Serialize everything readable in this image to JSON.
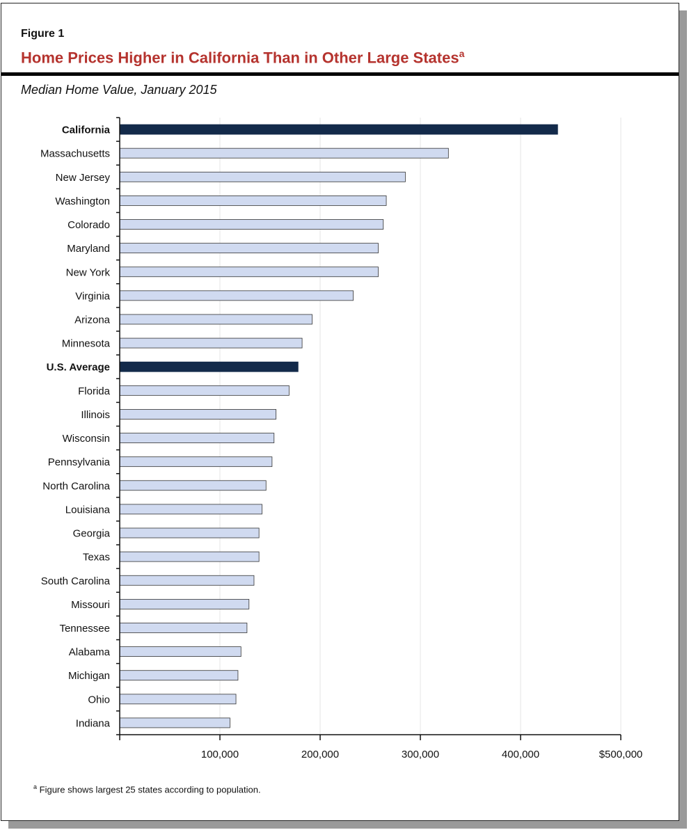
{
  "figure_label": "Figure 1",
  "title": "Home Prices Higher in California Than in Other Large States",
  "title_note_marker": "a",
  "subtitle": "Median Home Value, January 2015",
  "footnote": {
    "marker": "a",
    "text": "Figure shows largest 25 states according to population."
  },
  "colors": {
    "highlight": "#132a4a",
    "default": "#d0daf0",
    "title": "#b5332e"
  },
  "chart_data": {
    "type": "bar",
    "orientation": "horizontal",
    "categories": [
      "California",
      "Massachusetts",
      "New Jersey",
      "Washington",
      "Colorado",
      "Maryland",
      "New York",
      "Virginia",
      "Arizona",
      "Minnesota",
      "U.S. Average",
      "Florida",
      "Illinois",
      "Wisconsin",
      "Pennsylvania",
      "North Carolina",
      "Louisiana",
      "Georgia",
      "Texas",
      "South Carolina",
      "Missouri",
      "Tennessee",
      "Alabama",
      "Michigan",
      "Ohio",
      "Indiana"
    ],
    "values": [
      437000,
      328000,
      285000,
      266000,
      263000,
      258000,
      258000,
      233000,
      192000,
      182000,
      178000,
      169000,
      156000,
      154000,
      152000,
      146000,
      142000,
      139000,
      139000,
      134000,
      129000,
      127000,
      121000,
      118000,
      116000,
      110000
    ],
    "highlighted": [
      "California",
      "U.S. Average"
    ],
    "xlim": [
      0,
      500000
    ],
    "xticks": [
      100000,
      200000,
      300000,
      400000,
      500000
    ],
    "xtick_labels": [
      "100,000",
      "200,000",
      "300,000",
      "400,000",
      "$500,000"
    ],
    "grid": "vertical",
    "xlabel": "",
    "ylabel": ""
  }
}
